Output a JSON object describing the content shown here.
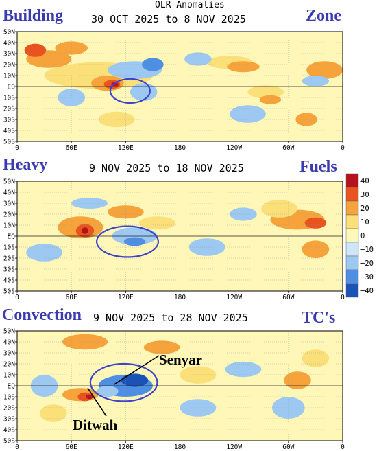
{
  "header": {
    "main_title": "OLR Anomalies"
  },
  "overlay_labels": {
    "building": "Building",
    "zone": "Zone",
    "heavy": "Heavy",
    "fuels": "Fuels",
    "convection": "Convection",
    "tcs": "TC's",
    "senyar": "Senyar",
    "ditwah": "Ditwah"
  },
  "colors": {
    "wet_strong": "#1b52b6",
    "wet": "#4f8fe3",
    "wet_weak": "#9cc8f2",
    "wet_faint": "#cde6fb",
    "neutral": "#fff7b8",
    "dry_faint": "#fbe07a",
    "dry": "#f5a33a",
    "dry_strong": "#e8531f",
    "dry_very_strong": "#b5121b",
    "ellipse": "#3f43c9"
  },
  "chart_data": [
    {
      "type": "heatmap",
      "title": "30 OCT 2025 to 8 NOV 2025",
      "x_ticks": [
        "0",
        "60E",
        "120E",
        "180",
        "120W",
        "60W",
        "0"
      ],
      "y_ticks": [
        "50N",
        "40N",
        "30N",
        "20N",
        "10N",
        "EQ",
        "10S",
        "20S",
        "30S",
        "40S",
        "50S"
      ],
      "xlim": [
        0,
        360
      ],
      "ylim": [
        -50,
        50
      ]
    },
    {
      "type": "heatmap",
      "title": "9 NOV 2025 to 18 NOV 2025",
      "x_ticks": [
        "0",
        "60E",
        "120E",
        "180",
        "120W",
        "60W",
        "0"
      ],
      "y_ticks": [
        "50N",
        "40N",
        "30N",
        "20N",
        "10N",
        "EQ",
        "10S",
        "20S",
        "30S",
        "40S",
        "50S"
      ],
      "xlim": [
        0,
        360
      ],
      "ylim": [
        -50,
        50
      ]
    },
    {
      "type": "heatmap",
      "title": "9 NOV 2025 to 28 NOV 2025",
      "x_ticks": [
        "0",
        "60E",
        "120E",
        "180",
        "120W",
        "60W",
        "0"
      ],
      "y_ticks": [
        "50N",
        "40N",
        "30N",
        "20N",
        "10N",
        "EQ",
        "10S",
        "20S",
        "30S",
        "40S",
        "50S"
      ],
      "xlim": [
        0,
        360
      ],
      "ylim": [
        -50,
        50
      ]
    }
  ],
  "colorbar": {
    "labels": [
      "40",
      "30",
      "20",
      "10",
      "0",
      "−10",
      "−20",
      "−30",
      "−40"
    ]
  }
}
